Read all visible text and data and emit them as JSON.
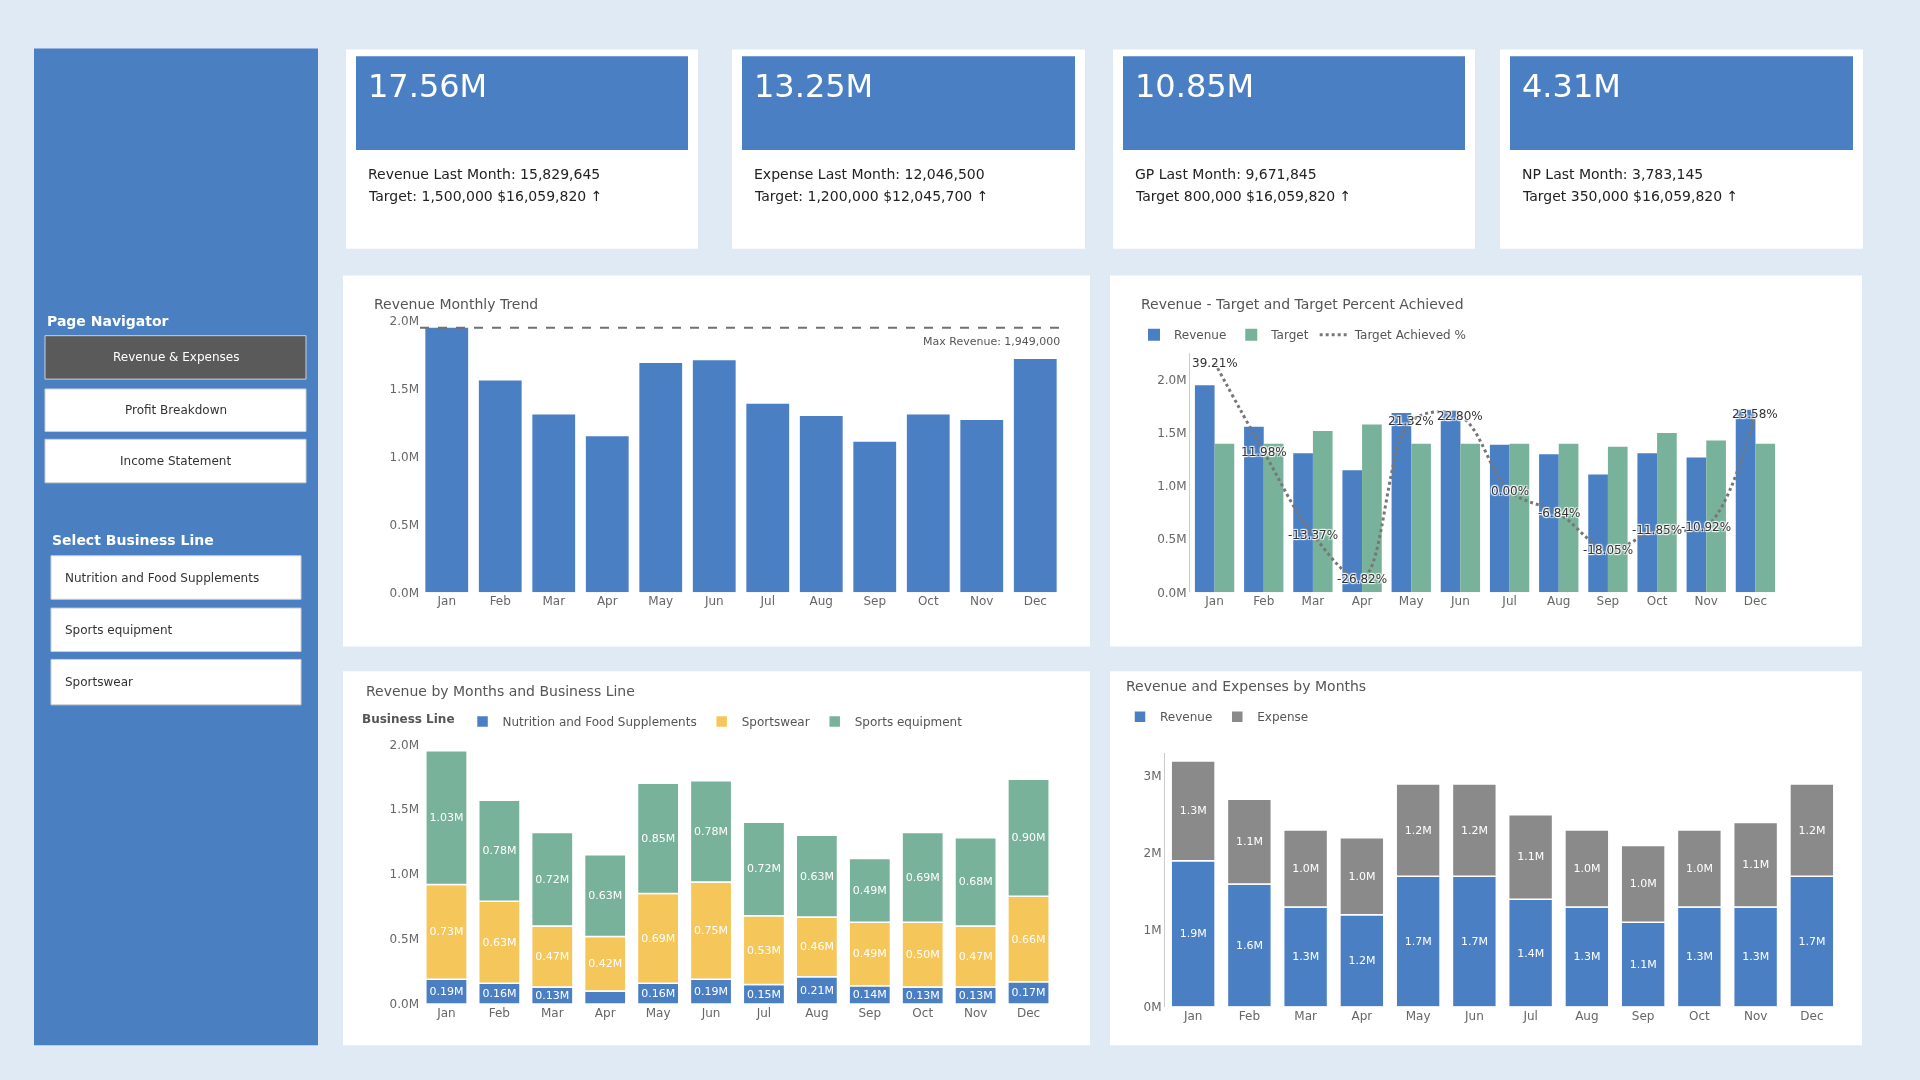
{
  "chart_data": [
    {
      "type": "other",
      "title": "Page Navigator",
      "annotations": [
        "Revenue & Expenses",
        "Profit Breakdown",
        "Income Statement"
      ]
    },
    {
      "type": "other",
      "title": "Select Business Line",
      "annotations": [
        "Nutrition and Food Supplements",
        "Sports equipment",
        "Sportswear"
      ]
    },
    {
      "type": "other",
      "title": "17.56M",
      "annotations": [
        "Revenue Last Month: 15,829,645",
        "Target: 1,500,000 $16,059,820 ↑"
      ]
    },
    {
      "type": "other",
      "title": "13.25M",
      "annotations": [
        "Expense Last Month: 12,046,500",
        "Target: 1,200,000 $12,045,700 ↑"
      ]
    },
    {
      "type": "other",
      "title": "10.85M",
      "annotations": [
        "GP Last Month: 9,671,845",
        "Target 800,000 $16,059,820 ↑"
      ]
    },
    {
      "type": "other",
      "title": "4.31M",
      "annotations": [
        "NP Last Month: 3,783,145",
        "Target 350,000 $16,059,820 ↑"
      ]
    },
    {
      "type": "bar",
      "title": "Revenue Monthly Trend",
      "categories": [
        "Jan",
        "Feb",
        "Mar",
        "Apr",
        "May",
        "Jun",
        "Jul",
        "Aug",
        "Sep",
        "Oct",
        "Nov",
        "Dec"
      ],
      "values": [
        1.95,
        1.56,
        1.31,
        1.15,
        1.69,
        1.71,
        1.39,
        1.3,
        1.11,
        1.31,
        1.27,
        1.72
      ],
      "color": "#4a7fc4",
      "ylim": [
        0,
        2.0
      ],
      "yticks": [
        {
          "value": 0,
          "label": "0.0M"
        },
        {
          "value": 0.5,
          "label": "0.5M"
        },
        {
          "value": 1.0,
          "label": "1.0M"
        },
        {
          "value": 1.5,
          "label": "1.5M"
        },
        {
          "value": 2.0,
          "label": "2.0M"
        }
      ],
      "ref_lines": [
        {
          "axis": "y",
          "value": 1.949,
          "label": "Max Revenue: 1,949,000",
          "color": "#707070",
          "line_style": "dashed"
        }
      ],
      "grid": false
    },
    {
      "type": "bar",
      "title": "Revenue - Target and Target Percent Achieved",
      "categories": [
        "Jan",
        "Feb",
        "Mar",
        "Apr",
        "May",
        "Jun",
        "Jul",
        "Aug",
        "Sep",
        "Oct",
        "Nov",
        "Dec"
      ],
      "series": [
        {
          "name": "Revenue",
          "color": "#4a7fc4",
          "values": [
            1.95,
            1.56,
            1.31,
            1.15,
            1.69,
            1.71,
            1.39,
            1.3,
            1.11,
            1.31,
            1.27,
            1.72
          ]
        },
        {
          "name": "Target",
          "color": "#78b29a",
          "values": [
            1.4,
            1.4,
            1.52,
            1.58,
            1.4,
            1.4,
            1.4,
            1.4,
            1.37,
            1.5,
            1.43,
            1.4
          ]
        },
        {
          "name": "Target Achieved %",
          "type": "line",
          "axis": "y2",
          "color": "#777777",
          "line_style": "dotted",
          "values": [
            39.21,
            11.98,
            -13.37,
            -26.82,
            21.32,
            22.8,
            0.0,
            -6.84,
            -18.05,
            -11.85,
            -10.92,
            23.58
          ],
          "value_labels": [
            "39.21%",
            "11.98%",
            "-13.37%",
            "-26.82%",
            "21.32%",
            "22.80%",
            "0.00%",
            "-6.84%",
            "-18.05%",
            "-11.85%",
            "-10.92%",
            "23.58%"
          ]
        }
      ],
      "ylim": [
        0,
        2.25
      ],
      "yticks": [
        {
          "value": 0,
          "label": "0.0M"
        },
        {
          "value": 0.5,
          "label": "0.5M"
        },
        {
          "value": 1.0,
          "label": "1.0M"
        },
        {
          "value": 1.5,
          "label": "1.5M"
        },
        {
          "value": 2.0,
          "label": "2.0M"
        }
      ],
      "y2lim": [
        -31,
        42
      ],
      "legend": "top left",
      "grid": false
    },
    {
      "type": "bar",
      "title": "Revenue by Months and Business Line",
      "legend_title": "Business Line",
      "stacked": true,
      "categories": [
        "Jan",
        "Feb",
        "Mar",
        "Apr",
        "May",
        "Jun",
        "Jul",
        "Aug",
        "Sep",
        "Oct",
        "Nov",
        "Dec"
      ],
      "series": [
        {
          "name": "Nutrition and Food Supplements",
          "color": "#4a7fc4",
          "values": [
            0.19,
            0.16,
            0.13,
            0.1,
            0.16,
            0.19,
            0.15,
            0.21,
            0.14,
            0.13,
            0.13,
            0.17
          ],
          "value_labels": [
            "0.19M",
            "0.16M",
            "0.13M",
            null,
            "0.16M",
            "0.19M",
            "0.15M",
            "0.21M",
            "0.14M",
            "0.13M",
            "0.13M",
            "0.17M"
          ]
        },
        {
          "name": "Sportswear",
          "color": "#f5c65a",
          "values": [
            0.73,
            0.63,
            0.47,
            0.42,
            0.69,
            0.75,
            0.53,
            0.46,
            0.49,
            0.5,
            0.47,
            0.66
          ],
          "value_labels": [
            "0.73M",
            "0.63M",
            "0.47M",
            "0.42M",
            "0.69M",
            "0.75M",
            "0.53M",
            "0.46M",
            "0.49M",
            "0.50M",
            "0.47M",
            "0.66M"
          ]
        },
        {
          "name": "Sports equipment",
          "color": "#78b29a",
          "values": [
            1.03,
            0.78,
            0.72,
            0.63,
            0.85,
            0.78,
            0.72,
            0.63,
            0.49,
            0.69,
            0.68,
            0.9
          ],
          "value_labels": [
            "1.03M",
            "0.78M",
            "0.72M",
            "0.63M",
            "0.85M",
            "0.78M",
            "0.72M",
            "0.63M",
            "0.49M",
            "0.69M",
            "0.68M",
            "0.90M"
          ]
        }
      ],
      "ylim": [
        0,
        2.0
      ],
      "yticks": [
        {
          "value": 0,
          "label": "0.0M"
        },
        {
          "value": 0.5,
          "label": "0.5M"
        },
        {
          "value": 1.0,
          "label": "1.0M"
        },
        {
          "value": 1.5,
          "label": "1.5M"
        },
        {
          "value": 2.0,
          "label": "2.0M"
        }
      ],
      "legend": "top left",
      "grid": false
    },
    {
      "type": "bar",
      "title": "Revenue and Expenses by Months",
      "stacked": true,
      "categories": [
        "Jan",
        "Feb",
        "Mar",
        "Apr",
        "May",
        "Jun",
        "Jul",
        "Aug",
        "Sep",
        "Oct",
        "Nov",
        "Dec"
      ],
      "series": [
        {
          "name": "Revenue",
          "color": "#4a7fc4",
          "values": [
            1.9,
            1.6,
            1.3,
            1.2,
            1.7,
            1.7,
            1.4,
            1.3,
            1.1,
            1.3,
            1.3,
            1.7
          ],
          "value_labels": [
            "1.9M",
            "1.6M",
            "1.3M",
            "1.2M",
            "1.7M",
            "1.7M",
            "1.4M",
            "1.3M",
            "1.1M",
            "1.3M",
            "1.3M",
            "1.7M"
          ]
        },
        {
          "name": "Expense",
          "color": "#8a8a8a",
          "values": [
            1.3,
            1.1,
            1.0,
            1.0,
            1.2,
            1.2,
            1.1,
            1.0,
            1.0,
            1.0,
            1.1,
            1.2
          ],
          "value_labels": [
            "1.3M",
            "1.1M",
            "1.0M",
            "1.0M",
            "1.2M",
            "1.2M",
            "1.1M",
            "1.0M",
            "1.0M",
            "1.0M",
            "1.1M",
            "1.2M"
          ]
        }
      ],
      "ylim": [
        0,
        3.3
      ],
      "yticks": [
        {
          "value": 0,
          "label": "0M"
        },
        {
          "value": 1,
          "label": "1M"
        },
        {
          "value": 2,
          "label": "2M"
        },
        {
          "value": 3,
          "label": "3M"
        }
      ],
      "legend": "top left",
      "grid": false
    }
  ]
}
